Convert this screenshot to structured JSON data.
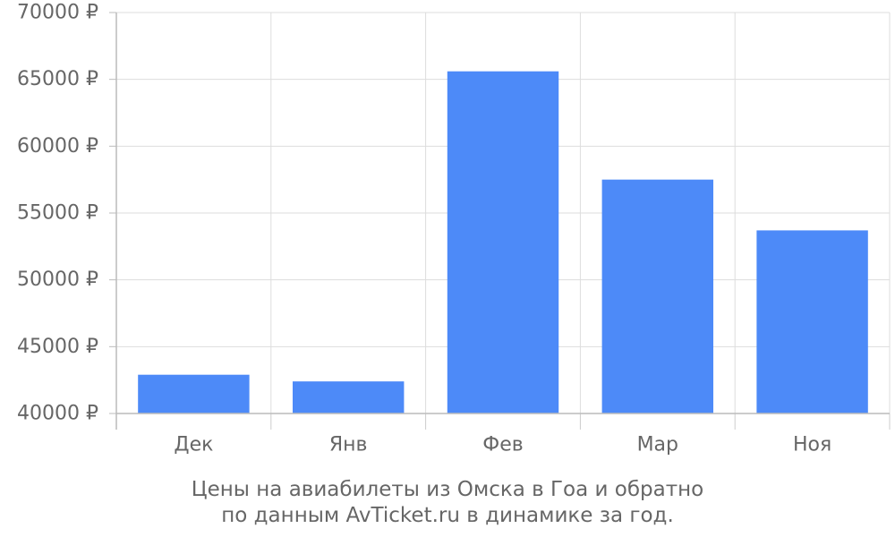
{
  "chart_data": {
    "type": "bar",
    "categories": [
      "Дек",
      "Янв",
      "Фев",
      "Мар",
      "Ноя"
    ],
    "values": [
      42900,
      42400,
      65600,
      57500,
      53700
    ],
    "ylim": [
      40000,
      70000
    ],
    "ytick_step": 5000,
    "yticks": [
      "40000 ₽",
      "45000 ₽",
      "50000 ₽",
      "55000 ₽",
      "60000 ₽",
      "65000 ₽",
      "70000 ₽"
    ],
    "y_unit": "₽",
    "grid": true,
    "bar_color": "#4d8af8",
    "caption_lines": [
      "Цены на авиабилеты из Омска в Гоа и обратно",
      "по данным AvTicket.ru в динамике за год."
    ]
  }
}
